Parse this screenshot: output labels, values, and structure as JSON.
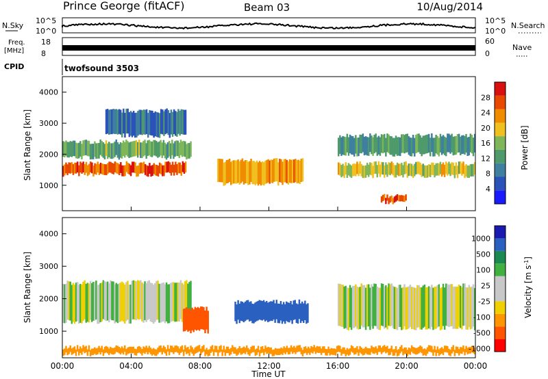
{
  "header": {
    "station": "Prince George (fitACF)",
    "beam": "Beam 03",
    "date": "10/Aug/2014"
  },
  "strips": {
    "nsky_label": "N.Sky",
    "nsky_ticks": [
      "10^5",
      "10^0"
    ],
    "nsearch_label": "N.Search",
    "nsearch_ticks": [
      "10^5",
      "10^0"
    ],
    "freq_label_1": "Freq.",
    "freq_label_2": "[MHz]",
    "freq_ticks": [
      "18",
      "8"
    ],
    "nave_label": "Nave",
    "nave_ticks": [
      "60",
      "0"
    ],
    "cpid_label": "CPID",
    "cpid_value": "twofsound 3503"
  },
  "colors": {
    "power": [
      "#1a1aff",
      "#2a52b8",
      "#3f7fa0",
      "#4f9a6a",
      "#7fb65a",
      "#f0c020",
      "#f08c00",
      "#e84800",
      "#d81010"
    ],
    "velocity": [
      "#ff0000",
      "#ff5500",
      "#ff9500",
      "#f0d000",
      "#c8c8c8",
      "#c8c8c8",
      "#40b040",
      "#1a8a50",
      "#2a60c0",
      "#1a1ab0"
    ]
  },
  "chart_data": [
    {
      "type": "heatmap",
      "panel": "power",
      "ylabel": "Slant Range [km]",
      "xlabel": "Time UT",
      "x_ticks": [
        "00:00",
        "04:00",
        "08:00",
        "12:00",
        "16:00",
        "20:00",
        "00:00"
      ],
      "x_range_hours": [
        0,
        24
      ],
      "y_ticks": [
        "4000",
        "3000",
        "2000",
        "1000"
      ],
      "y_range_km": [
        180,
        4500
      ],
      "colorbar_label": "Power [dB]",
      "colorbar_ticks": [
        "28",
        "24",
        "20",
        "16",
        "12",
        "8",
        "4"
      ],
      "colorbar_range": [
        0,
        32
      ],
      "echo_bands": [
        {
          "t_start": 0.0,
          "t_end": 7.2,
          "range_km": [
            1350,
            1700
          ],
          "db": 26
        },
        {
          "t_start": 0.0,
          "t_end": 7.5,
          "range_km": [
            1900,
            2400
          ],
          "db": 14
        },
        {
          "t_start": 2.5,
          "t_end": 7.2,
          "range_km": [
            2600,
            3400
          ],
          "db": 8
        },
        {
          "t_start": 9.0,
          "t_end": 14.0,
          "range_km": [
            1050,
            1800
          ],
          "db": 22
        },
        {
          "t_start": 16.0,
          "t_end": 24.0,
          "range_km": [
            1300,
            1700
          ],
          "db": 18
        },
        {
          "t_start": 16.0,
          "t_end": 24.0,
          "range_km": [
            2000,
            2600
          ],
          "db": 12
        },
        {
          "t_start": 18.5,
          "t_end": 20.0,
          "range_km": [
            450,
            650
          ],
          "db": 26
        }
      ]
    },
    {
      "type": "heatmap",
      "panel": "velocity",
      "ylabel": "Slant Range [km]",
      "xlabel": "Time UT",
      "x_ticks": [
        "00:00",
        "04:00",
        "08:00",
        "12:00",
        "16:00",
        "20:00",
        "00:00"
      ],
      "x_range_hours": [
        0,
        24
      ],
      "y_ticks": [
        "4000",
        "3000",
        "2000",
        "1000"
      ],
      "y_range_km": [
        180,
        4500
      ],
      "colorbar_label": "Velocity [m s-1]",
      "colorbar_ticks": [
        "1000",
        "500",
        "100",
        "25",
        "-25",
        "-100",
        "-500",
        "-1000"
      ],
      "echo_bands": [
        {
          "t_start": 0.0,
          "t_end": 7.5,
          "range_km": [
            1300,
            2500
          ],
          "velocity_ms": 0
        },
        {
          "t_start": 7.0,
          "t_end": 8.5,
          "range_km": [
            1000,
            1700
          ],
          "velocity_ms": -400
        },
        {
          "t_start": 10.0,
          "t_end": 14.3,
          "range_km": [
            1300,
            1900
          ],
          "velocity_ms": 600
        },
        {
          "t_start": 16.0,
          "t_end": 24.0,
          "range_km": [
            1100,
            2400
          ],
          "velocity_ms": 0
        },
        {
          "t_start": 0.0,
          "t_end": 24.0,
          "range_km": [
            300,
            500
          ],
          "velocity_ms": -150
        }
      ]
    }
  ]
}
